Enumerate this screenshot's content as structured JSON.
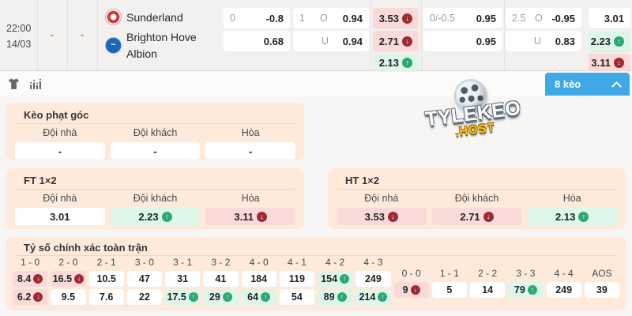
{
  "match": {
    "time": "22:00",
    "date": "14/03",
    "score_col1": "-",
    "score_col2": "-",
    "home_name": "Sunderland",
    "away_name": "Brighton Hove Albion",
    "odds": {
      "ft_handicap": {
        "line": "0",
        "home_odds": "-0.8",
        "away_odds": "0.68"
      },
      "ft_total": {
        "line": "1",
        "over_label": "O",
        "over_odds": "0.94",
        "under_label": "U",
        "under_odds": "0.94"
      },
      "x12_first": {
        "home": "3.53",
        "away": "2.71",
        "draw": "2.13"
      },
      "ht_handicap": {
        "line": "0/-0.5",
        "home_odds": "0.95",
        "away_odds": "0.95"
      },
      "ht_total": {
        "line": "2.5",
        "over_label": "O",
        "over_odds": "-0.95",
        "under_label": "U",
        "under_odds": "0.83"
      },
      "x12_second": {
        "home": "3.01",
        "away": "2.23",
        "draw": "3.11"
      }
    }
  },
  "toolbar": {
    "odds_count_label": "8 kèo"
  },
  "watermark": {
    "main": "TYLEKEO",
    "sub": ".HOST"
  },
  "corner": {
    "title": "Kèo phạt góc",
    "labels": [
      "Đội nhà",
      "Đội khách",
      "Hòa"
    ],
    "values": [
      "-",
      "-",
      "-"
    ]
  },
  "ft": {
    "title": "FT 1×2",
    "labels": [
      "Đội nhà",
      "Đội khách",
      "Hòa"
    ],
    "values": [
      {
        "v": "3.01",
        "bg": "white"
      },
      {
        "v": "2.23",
        "bg": "green",
        "trend": "up"
      },
      {
        "v": "3.11",
        "bg": "pink",
        "trend": "down"
      }
    ]
  },
  "ht": {
    "title": "HT 1×2",
    "labels": [
      "Đội nhà",
      "Đội khách",
      "Hòa"
    ],
    "values": [
      {
        "v": "3.53",
        "bg": "pink",
        "trend": "down"
      },
      {
        "v": "2.71",
        "bg": "pink",
        "trend": "down"
      },
      {
        "v": "2.13",
        "bg": "green",
        "trend": "up"
      }
    ]
  },
  "score": {
    "title": "Tỷ số chính xác toàn trận",
    "columns": [
      {
        "header": "1 - 0",
        "cells": [
          {
            "v": "8.4",
            "bg": "pink",
            "trend": "down"
          },
          {
            "v": "6.2",
            "bg": "pink",
            "trend": "down"
          }
        ]
      },
      {
        "header": "2 - 0",
        "cells": [
          {
            "v": "16.5",
            "bg": "pink",
            "trend": "down"
          },
          {
            "v": "9.5",
            "bg": "white"
          }
        ]
      },
      {
        "header": "2 - 1",
        "cells": [
          {
            "v": "10.5",
            "bg": "white"
          },
          {
            "v": "7.6",
            "bg": "white"
          }
        ]
      },
      {
        "header": "3 - 0",
        "cells": [
          {
            "v": "47",
            "bg": "white"
          },
          {
            "v": "22",
            "bg": "white"
          }
        ]
      },
      {
        "header": "3 - 1",
        "cells": [
          {
            "v": "31",
            "bg": "white"
          },
          {
            "v": "17.5",
            "bg": "green",
            "trend": "up"
          }
        ]
      },
      {
        "header": "3 - 2",
        "cells": [
          {
            "v": "41",
            "bg": "white"
          },
          {
            "v": "29",
            "bg": "green",
            "trend": "up"
          }
        ]
      },
      {
        "header": "4 - 0",
        "cells": [
          {
            "v": "184",
            "bg": "white"
          },
          {
            "v": "64",
            "bg": "green",
            "trend": "up"
          }
        ]
      },
      {
        "header": "4 - 1",
        "cells": [
          {
            "v": "119",
            "bg": "white"
          },
          {
            "v": "54",
            "bg": "white"
          }
        ]
      },
      {
        "header": "4 - 2",
        "cells": [
          {
            "v": "154",
            "bg": "green",
            "trend": "up"
          },
          {
            "v": "89",
            "bg": "green",
            "trend": "up"
          }
        ]
      },
      {
        "header": "4 - 3",
        "cells": [
          {
            "v": "249",
            "bg": "white"
          },
          {
            "v": "214",
            "bg": "green",
            "trend": "up"
          }
        ]
      },
      {
        "header": "0 - 0",
        "single": true,
        "cells": [
          {
            "v": "9",
            "bg": "pink",
            "trend": "down"
          }
        ]
      },
      {
        "header": "1 - 1",
        "single": true,
        "cells": [
          {
            "v": "5",
            "bg": "white"
          }
        ]
      },
      {
        "header": "2 - 2",
        "single": true,
        "cells": [
          {
            "v": "14",
            "bg": "white"
          }
        ]
      },
      {
        "header": "3 - 3",
        "single": true,
        "cells": [
          {
            "v": "79",
            "bg": "green",
            "trend": "up"
          }
        ]
      },
      {
        "header": "4 - 4",
        "single": true,
        "cells": [
          {
            "v": "249",
            "bg": "white"
          }
        ]
      },
      {
        "header": "AOS",
        "single": true,
        "cells": [
          {
            "v": "39",
            "bg": "white"
          }
        ]
      }
    ]
  }
}
